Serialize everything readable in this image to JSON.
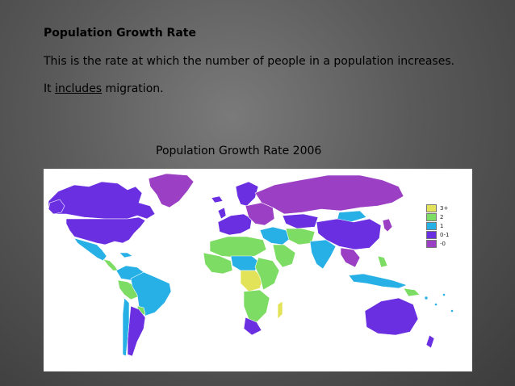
{
  "slide": {
    "heading": "Population Growth Rate",
    "para1": "This is the rate at which the number of people in a population increases.",
    "para2_prefix": "It ",
    "para2_link": "includes",
    "para2_suffix": " migration."
  },
  "map": {
    "title": "Population Growth Rate 2006",
    "ocean_color": "#ffffff",
    "border_color": "#ffffff",
    "legend": [
      {
        "label": "3+",
        "color": "#e3e35a"
      },
      {
        "label": "2",
        "color": "#7ddc63"
      },
      {
        "label": "1",
        "color": "#27b0e6"
      },
      {
        "label": "0-1",
        "color": "#6a2fe0"
      },
      {
        "label": "-0",
        "color": "#9b3fc4"
      }
    ]
  }
}
